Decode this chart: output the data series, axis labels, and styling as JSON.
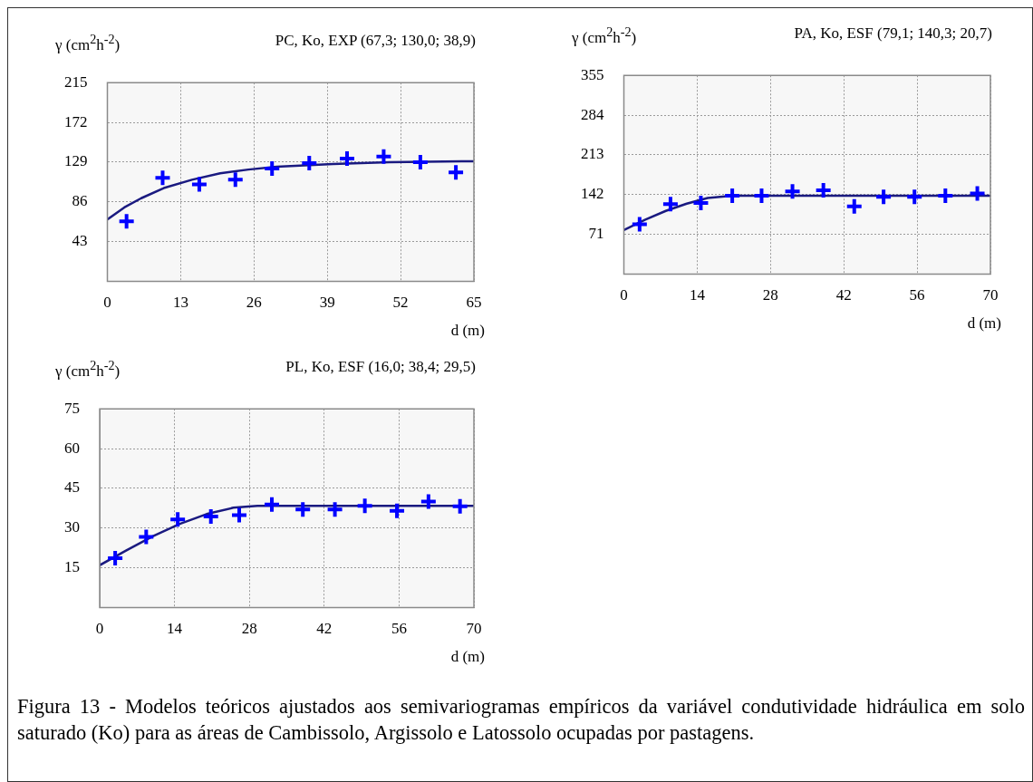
{
  "chart_data": [
    {
      "type": "scatter",
      "title": "PC, Ko, EXP (67,3; 130,0; 38,9)",
      "ylabel": "γ (cm$^{2}$h$^{-2}$)",
      "xlabel": "d (m)",
      "xlim": [
        0,
        65
      ],
      "ylim": [
        0,
        215
      ],
      "xticks": [
        0,
        13,
        26,
        39,
        52,
        65
      ],
      "yticks": [
        43,
        86,
        129,
        172,
        215
      ],
      "grid": true,
      "annotations": [
        "Figura 13 - Modelos teóricos ajustados aos semivariogramas empíricos da variável condutividade hidráulica em solo saturado (Ko) para as áreas de Cambissolo, Argissolo e Latossolo ocupadas por pastagens."
      ],
      "series": [
        {
          "color": "#0000ff",
          "marker": "cross",
          "x": [
            3.4,
            9.8,
            16.3,
            22.7,
            29.2,
            35.8,
            42.5,
            49,
            55.5,
            61.8
          ],
          "values": [
            65,
            112,
            105,
            110,
            122,
            128,
            133,
            135,
            129,
            118
          ]
        },
        {
          "type": "line",
          "color": "#1a1a80",
          "x": [
            0,
            3,
            6,
            10,
            15,
            20,
            25,
            30,
            40,
            50,
            65
          ],
          "values": [
            67,
            80,
            90,
            101,
            110,
            117,
            121,
            124,
            127,
            129,
            130
          ]
        }
      ]
    },
    {
      "type": "scatter",
      "title": "PA, Ko, ESF (79,1; 140,3; 20,7)",
      "ylabel": "γ (cm$^{2}$h$^{-2}$)",
      "xlabel": "d (m)",
      "xlim": [
        0,
        70
      ],
      "ylim": [
        0,
        355
      ],
      "xticks": [
        0,
        14,
        28,
        42,
        56,
        70
      ],
      "yticks": [
        71,
        142,
        213,
        284,
        355
      ],
      "grid": true,
      "series": [
        {
          "color": "#0000ff",
          "marker": "cross",
          "x": [
            3,
            8.9,
            14.7,
            20.7,
            26.3,
            32.2,
            38.1,
            44,
            49.6,
            55.5,
            61.4,
            67.5
          ],
          "values": [
            89,
            125,
            127,
            140,
            140,
            148,
            150,
            121,
            138,
            138,
            140,
            144
          ]
        },
        {
          "type": "line",
          "color": "#1a1a80",
          "x": [
            0,
            4,
            8,
            12,
            16,
            20.7,
            70
          ],
          "values": [
            79,
            97,
            113,
            126,
            136,
            140,
            140
          ]
        }
      ]
    },
    {
      "type": "scatter",
      "title": "PL, Ko, ESF (16,0; 38,4; 29,5)",
      "ylabel": "γ (cm$^{2}$h$^{-2}$)",
      "xlabel": "d (m)",
      "xlim": [
        0,
        70
      ],
      "ylim": [
        0,
        75
      ],
      "xticks": [
        0,
        14,
        28,
        42,
        56,
        70
      ],
      "yticks": [
        15,
        30,
        45,
        60,
        75
      ],
      "grid": true,
      "series": [
        {
          "color": "#0000ff",
          "marker": "cross",
          "x": [
            2.9,
            8.7,
            14.6,
            20.8,
            26.1,
            32.2,
            38,
            44,
            49.6,
            55.6,
            61.5,
            67.4
          ],
          "values": [
            18.7,
            26.7,
            33.3,
            34.4,
            34.9,
            38.9,
            37,
            37,
            38.4,
            36.5,
            40,
            38.2
          ]
        },
        {
          "type": "line",
          "color": "#1a1a80",
          "x": [
            0,
            5,
            10,
            15,
            20,
            25,
            29.5,
            70
          ],
          "values": [
            16,
            21.6,
            27,
            31.6,
            35.3,
            37.7,
            38.4,
            38.4
          ]
        }
      ]
    }
  ]
}
